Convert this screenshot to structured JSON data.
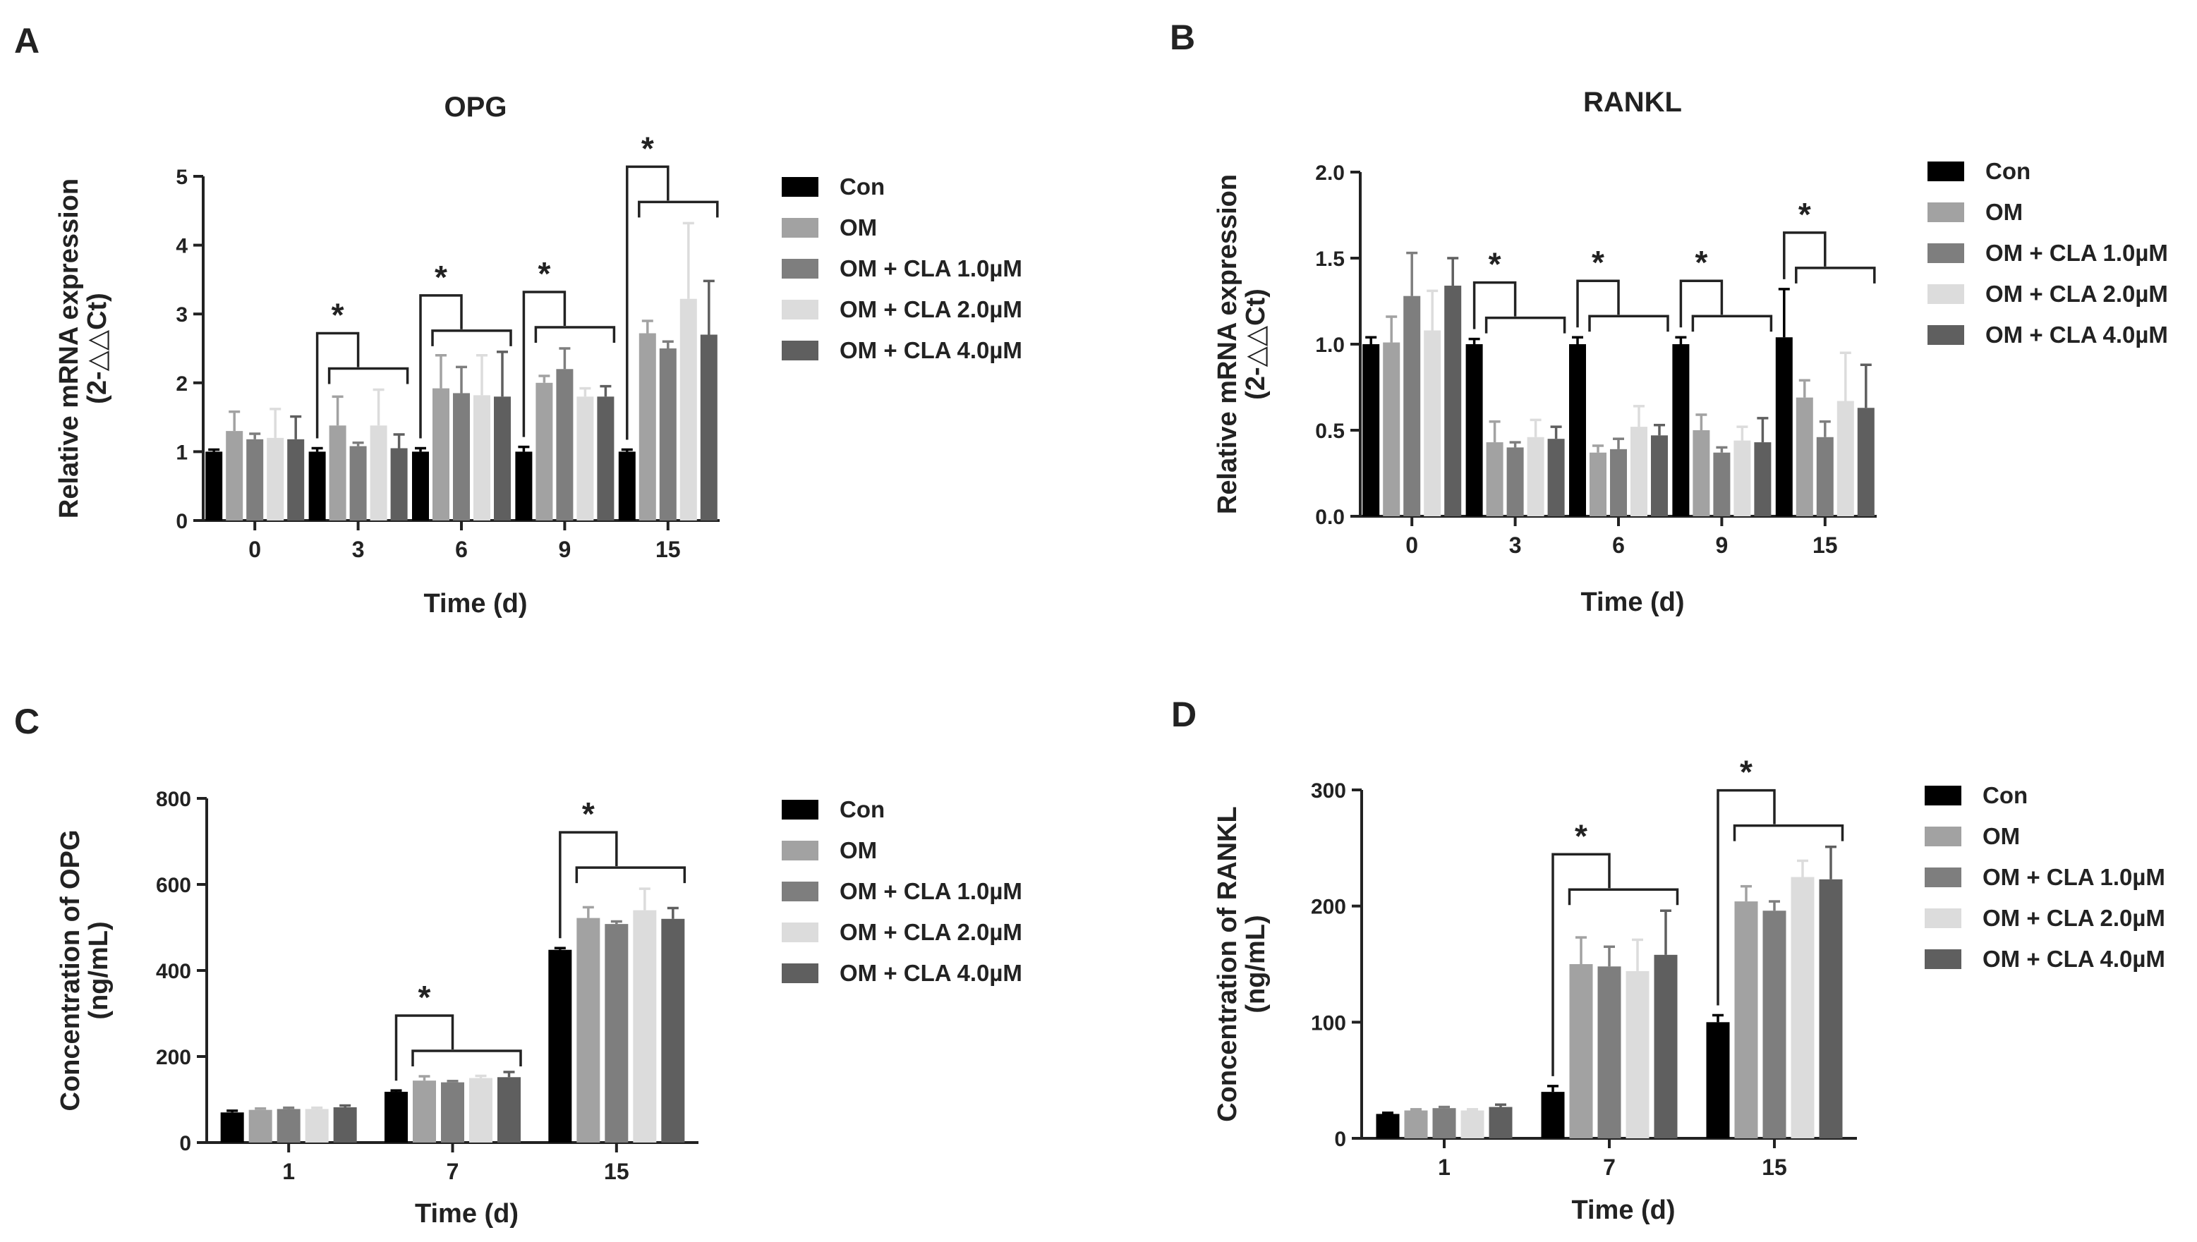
{
  "colors": {
    "Con": "#000000",
    "OM": "#a2a2a2",
    "OM + CLA 1.0µM": "#7e7e7e",
    "OM + CLA 2.0µM": "#dcdcdc",
    "OM + CLA 4.0µM": "#5f5f5f",
    "axis": "#222222"
  },
  "chart_data": [
    {
      "panel": "A",
      "type": "bar",
      "title": "OPG",
      "xlabel": "Time (d)",
      "ylabel": [
        "Relative mRNA expression",
        "(2-△△Ct)"
      ],
      "categories": [
        "0",
        "3",
        "6",
        "9",
        "15"
      ],
      "ylim": [
        0,
        5
      ],
      "yticks": [
        0,
        1,
        2,
        3,
        4,
        5
      ],
      "ytick_decimals": 0,
      "series": [
        {
          "name": "Con",
          "values": [
            1.0,
            1.0,
            1.0,
            1.0,
            1.0
          ],
          "errors": [
            0.03,
            0.05,
            0.05,
            0.07,
            0.03
          ]
        },
        {
          "name": "OM",
          "values": [
            1.3,
            1.38,
            1.92,
            2.0,
            2.72
          ],
          "errors": [
            0.28,
            0.42,
            0.48,
            0.1,
            0.18
          ]
        },
        {
          "name": "OM + CLA 1.0µM",
          "values": [
            1.18,
            1.08,
            1.85,
            2.2,
            2.5
          ],
          "errors": [
            0.08,
            0.05,
            0.38,
            0.3,
            0.1
          ]
        },
        {
          "name": "OM + CLA 2.0µM",
          "values": [
            1.2,
            1.38,
            1.82,
            1.8,
            3.22
          ],
          "errors": [
            0.42,
            0.52,
            0.58,
            0.12,
            1.1
          ]
        },
        {
          "name": "OM + CLA 4.0µM",
          "values": [
            1.18,
            1.05,
            1.8,
            1.8,
            2.7
          ],
          "errors": [
            0.33,
            0.2,
            0.65,
            0.15,
            0.78
          ]
        }
      ],
      "annotations": [
        {
          "category": "3",
          "text": "*"
        },
        {
          "category": "6",
          "text": "*"
        },
        {
          "category": "9",
          "text": "*"
        },
        {
          "category": "15",
          "text": "*"
        }
      ]
    },
    {
      "panel": "B",
      "type": "bar",
      "title": "RANKL",
      "xlabel": "Time (d)",
      "ylabel": [
        "Relative mRNA expression",
        "(2-△△Ct)"
      ],
      "categories": [
        "0",
        "3",
        "6",
        "9",
        "15"
      ],
      "ylim": [
        0,
        2
      ],
      "yticks": [
        0,
        0.5,
        1,
        1.5,
        2
      ],
      "ytick_decimals": 1,
      "series": [
        {
          "name": "Con",
          "values": [
            1.0,
            1.0,
            1.0,
            1.0,
            1.04
          ],
          "errors": [
            0.04,
            0.03,
            0.04,
            0.04,
            0.28
          ]
        },
        {
          "name": "OM",
          "values": [
            1.01,
            0.43,
            0.37,
            0.5,
            0.69
          ],
          "errors": [
            0.15,
            0.12,
            0.04,
            0.09,
            0.1
          ]
        },
        {
          "name": "OM + CLA 1.0µM",
          "values": [
            1.28,
            0.4,
            0.39,
            0.37,
            0.46
          ],
          "errors": [
            0.25,
            0.03,
            0.06,
            0.03,
            0.09
          ]
        },
        {
          "name": "OM + CLA 2.0µM",
          "values": [
            1.08,
            0.46,
            0.52,
            0.44,
            0.67
          ],
          "errors": [
            0.23,
            0.1,
            0.12,
            0.08,
            0.28
          ]
        },
        {
          "name": "OM + CLA 4.0µM",
          "values": [
            1.34,
            0.45,
            0.47,
            0.43,
            0.63
          ],
          "errors": [
            0.16,
            0.07,
            0.06,
            0.14,
            0.25
          ]
        }
      ],
      "annotations": [
        {
          "category": "3",
          "text": "*"
        },
        {
          "category": "6",
          "text": "*"
        },
        {
          "category": "9",
          "text": "*"
        },
        {
          "category": "15",
          "text": "*"
        }
      ]
    },
    {
      "panel": "C",
      "type": "bar",
      "title": "",
      "xlabel": "Time (d)",
      "ylabel": [
        "Concentration of OPG",
        "(ng/mL)"
      ],
      "categories": [
        "1",
        "7",
        "15"
      ],
      "ylim": [
        0,
        800
      ],
      "yticks": [
        0,
        200,
        400,
        600,
        800
      ],
      "ytick_decimals": 0,
      "series": [
        {
          "name": "Con",
          "values": [
            70,
            118,
            448
          ],
          "errors": [
            4,
            3,
            4
          ]
        },
        {
          "name": "OM",
          "values": [
            76,
            144,
            522
          ],
          "errors": [
            3,
            10,
            25
          ]
        },
        {
          "name": "OM + CLA 1.0µM",
          "values": [
            78,
            140,
            508
          ],
          "errors": [
            3,
            3,
            6
          ]
        },
        {
          "name": "OM + CLA 2.0µM",
          "values": [
            78,
            150,
            540
          ],
          "errors": [
            3,
            5,
            50
          ]
        },
        {
          "name": "OM + CLA 4.0µM",
          "values": [
            82,
            152,
            520
          ],
          "errors": [
            4,
            12,
            25
          ]
        }
      ],
      "annotations": [
        {
          "category": "7",
          "text": "*"
        },
        {
          "category": "15",
          "text": "*"
        }
      ]
    },
    {
      "panel": "D",
      "type": "bar",
      "title": "",
      "xlabel": "Time (d)",
      "ylabel": [
        "Concentration of RANKL",
        "(ng/mL)"
      ],
      "categories": [
        "1",
        "7",
        "15"
      ],
      "ylim": [
        0,
        300
      ],
      "yticks": [
        0,
        100,
        200,
        300
      ],
      "ytick_decimals": 0,
      "series": [
        {
          "name": "Con",
          "values": [
            21,
            40,
            100
          ],
          "errors": [
            1,
            5,
            6
          ]
        },
        {
          "name": "OM",
          "values": [
            24,
            150,
            204
          ],
          "errors": [
            1,
            23,
            13
          ]
        },
        {
          "name": "OM + CLA 1.0µM",
          "values": [
            26,
            148,
            196
          ],
          "errors": [
            1,
            17,
            8
          ]
        },
        {
          "name": "OM + CLA 2.0µM",
          "values": [
            24,
            144,
            225
          ],
          "errors": [
            1,
            27,
            14
          ]
        },
        {
          "name": "OM + CLA 4.0µM",
          "values": [
            27,
            158,
            223
          ],
          "errors": [
            2,
            38,
            28
          ]
        }
      ],
      "annotations": [
        {
          "category": "7",
          "text": "*"
        },
        {
          "category": "15",
          "text": "*"
        }
      ]
    }
  ]
}
